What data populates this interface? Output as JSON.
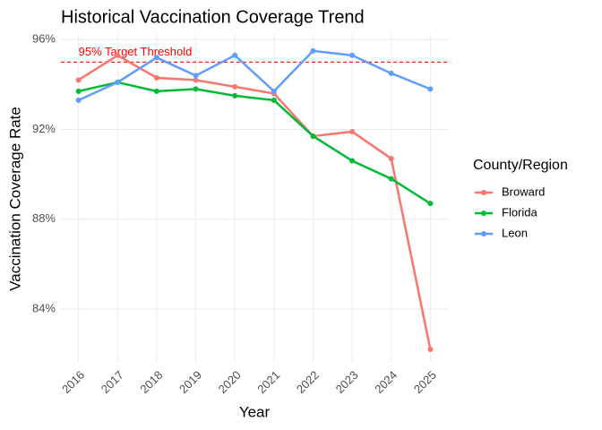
{
  "chart_data": {
    "type": "line",
    "title": "Historical Vaccination Coverage Trend",
    "x_label": "Year",
    "y_label": "Vaccination Coverage Rate",
    "legend_title": "County/Region",
    "legend_position": "right",
    "grid": true,
    "x": [
      2016,
      2017,
      2018,
      2019,
      2020,
      2021,
      2022,
      2023,
      2024,
      2025
    ],
    "xlim": [
      2015.55,
      2025.45
    ],
    "xticks": [
      2016,
      2017,
      2018,
      2019,
      2020,
      2021,
      2022,
      2023,
      2024,
      2025
    ],
    "ylim": [
      81.6,
      96.25
    ],
    "yticks": [
      {
        "value": 84,
        "label": "84%"
      },
      {
        "value": 88,
        "label": "88%"
      },
      {
        "value": 92,
        "label": "92%"
      },
      {
        "value": 96,
        "label": "96%"
      }
    ],
    "series": [
      {
        "name": "Broward",
        "color": "#F8766D",
        "values": [
          94.2,
          95.3,
          94.3,
          94.2,
          93.9,
          93.6,
          91.7,
          91.9,
          90.7,
          82.2
        ]
      },
      {
        "name": "Florida",
        "color": "#00BA38",
        "values": [
          93.7,
          94.1,
          93.7,
          93.8,
          93.5,
          93.3,
          91.7,
          90.6,
          89.8,
          88.7
        ]
      },
      {
        "name": "Leon",
        "color": "#619CFF",
        "values": [
          93.3,
          94.1,
          95.2,
          94.4,
          95.3,
          93.7,
          95.5,
          95.3,
          94.5,
          93.8
        ]
      }
    ],
    "threshold": {
      "value": 95,
      "label": "95% Target Threshold",
      "color": "#FF0000"
    }
  }
}
